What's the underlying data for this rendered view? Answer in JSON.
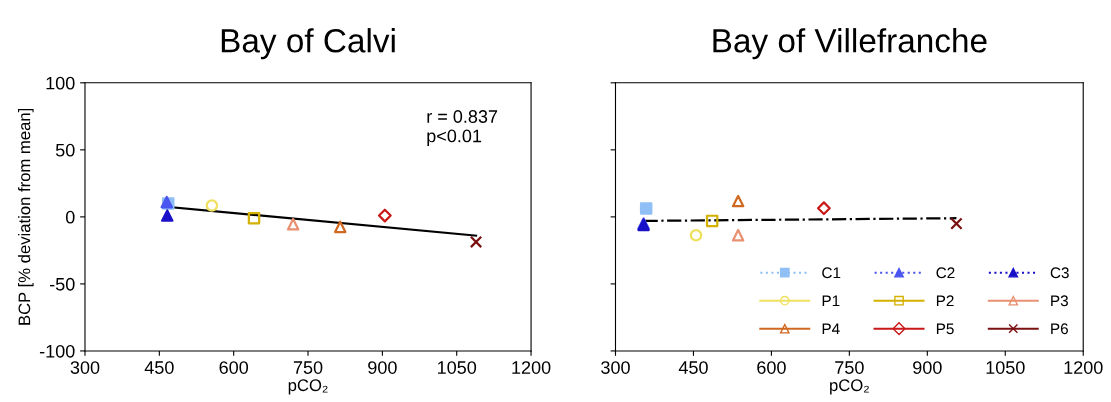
{
  "chart_data": [
    {
      "type": "scatter",
      "title": "Bay of Calvi",
      "xlabel": "pCO₂",
      "ylabel": "BCP [% deviation from mean]",
      "xlim": [
        300,
        1200
      ],
      "xticks": [
        300,
        450,
        600,
        750,
        900,
        1050,
        1200
      ],
      "ylim": [
        -100,
        100
      ],
      "yticks": [
        -100,
        -50,
        0,
        50,
        100
      ],
      "grid": false,
      "annotations": [
        "r = 0.837\np<0.01"
      ],
      "series": [
        {
          "color": "#8fbff5",
          "marker": "square",
          "line_style": "dotted",
          "x": [
            468
          ],
          "values": [
            10
          ]
        },
        {
          "color": "#4a55f0",
          "marker": "triangle",
          "line_style": "dotted",
          "x": [
            465
          ],
          "values": [
            11
          ]
        },
        {
          "color": "#1a10c8",
          "marker": "triangle",
          "line_style": "dotted",
          "x": [
            466
          ],
          "values": [
            1
          ]
        },
        {
          "color": "#f0e060",
          "marker": "circle",
          "line_style": "solid",
          "x": [
            556
          ],
          "values": [
            8.5
          ]
        },
        {
          "color": "#d4b000",
          "marker": "square",
          "line_style": "solid",
          "x": [
            641
          ],
          "values": [
            -1
          ]
        },
        {
          "color": "#e89070",
          "marker": "triangle",
          "line_style": "solid",
          "x": [
            720
          ],
          "values": [
            -5.5
          ]
        },
        {
          "color": "#d06820",
          "marker": "triangle",
          "line_style": "solid",
          "x": [
            815
          ],
          "values": [
            -7.5
          ]
        },
        {
          "color": "#c81818",
          "marker": "diamond",
          "line_style": "solid",
          "x": [
            905
          ],
          "values": [
            1
          ]
        },
        {
          "color": "#7a1010",
          "marker": "cross",
          "line_style": "solid",
          "x": [
            1089
          ],
          "values": [
            -18.7
          ]
        },
        {
          "type": "line",
          "color": "#000000",
          "line_style": "solid",
          "x": [
            465,
            1089
          ],
          "values": [
            7.5,
            -14
          ]
        }
      ]
    },
    {
      "type": "scatter",
      "title": "Bay of Villefranche",
      "xlabel": "pCO₂",
      "xlim": [
        300,
        1200
      ],
      "xticks": [
        300,
        450,
        600,
        750,
        900,
        1050,
        1200
      ],
      "ylim": [
        -100,
        100
      ],
      "yticks": [
        -100,
        -50,
        0,
        50,
        100
      ],
      "tick_labels": "x",
      "grid": false,
      "legend": "bottom right",
      "series": [
        {
          "name": "C1",
          "color": "#8fbff5",
          "marker": "square",
          "line_style": "dotted",
          "x": [
            359
          ],
          "values": [
            6.3
          ]
        },
        {
          "name": "C2",
          "color": "#4a55f0",
          "marker": "triangle",
          "line_style": "dotted",
          "x": [
            354
          ],
          "values": [
            -5
          ]
        },
        {
          "name": "C3",
          "color": "#1a10c8",
          "marker": "triangle",
          "line_style": "dotted",
          "x": [
            354
          ],
          "values": [
            -6
          ]
        },
        {
          "name": "P1",
          "color": "#f0e060",
          "marker": "circle",
          "line_style": "solid",
          "x": [
            455
          ],
          "values": [
            -13.7
          ]
        },
        {
          "name": "P2",
          "color": "#d4b000",
          "marker": "square",
          "line_style": "solid",
          "x": [
            486
          ],
          "values": [
            -3
          ]
        },
        {
          "name": "P3",
          "color": "#e89070",
          "marker": "triangle",
          "line_style": "solid",
          "x": [
            536
          ],
          "values": [
            -13.7
          ]
        },
        {
          "name": "P4",
          "color": "#d06820",
          "marker": "triangle",
          "line_style": "solid",
          "x": [
            536
          ],
          "values": [
            11.8
          ]
        },
        {
          "name": "P5",
          "color": "#c81818",
          "marker": "diamond",
          "line_style": "solid",
          "x": [
            701
          ],
          "values": [
            6.5
          ]
        },
        {
          "name": "P6",
          "color": "#7a1010",
          "marker": "cross",
          "line_style": "solid",
          "x": [
            956
          ],
          "values": [
            -5
          ]
        },
        {
          "type": "line",
          "color": "#000000",
          "line_style": "dashdot",
          "x": [
            354,
            956
          ],
          "values": [
            -3,
            -1
          ]
        }
      ]
    }
  ]
}
